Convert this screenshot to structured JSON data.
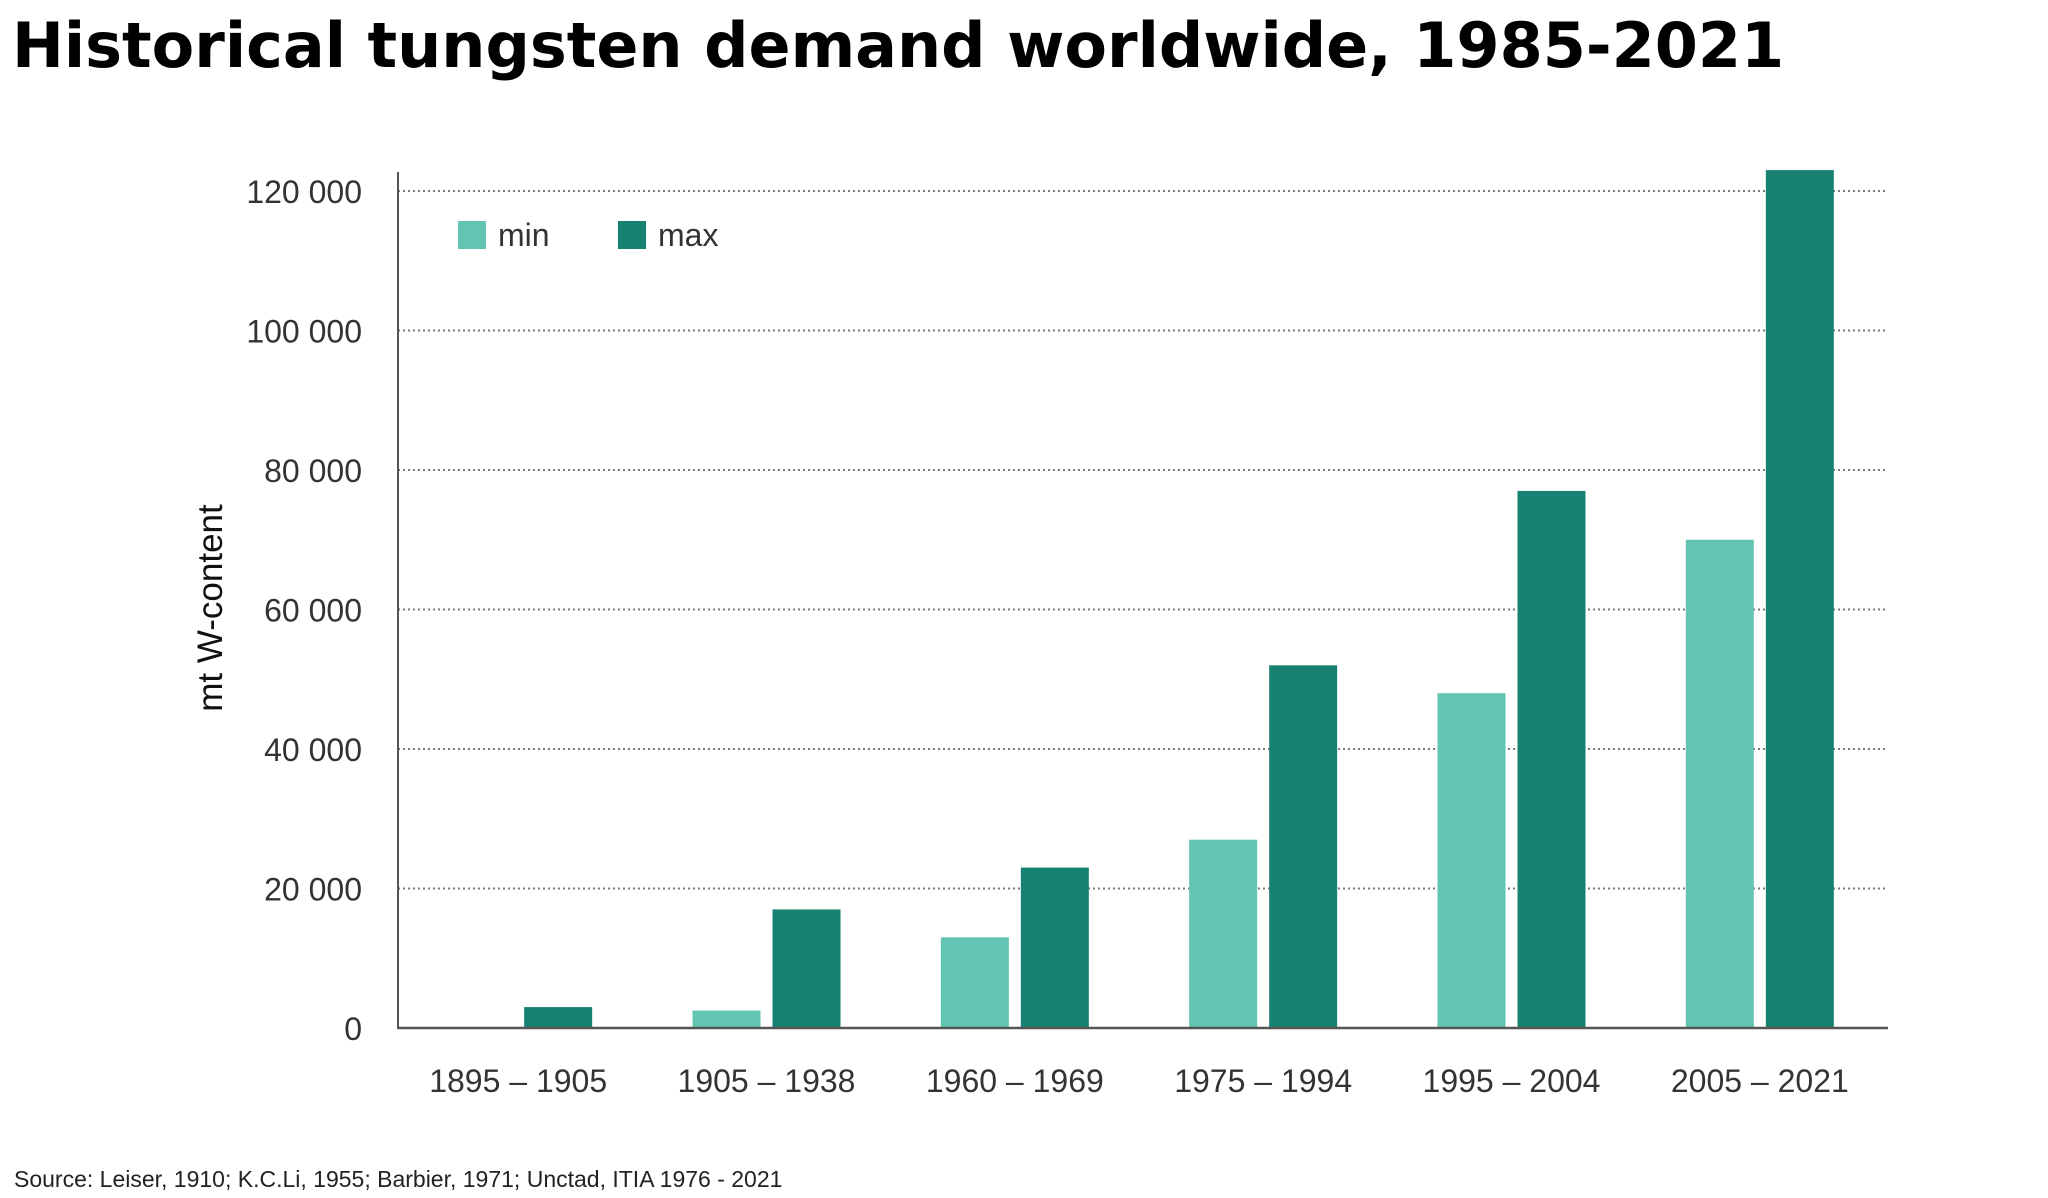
{
  "header": {
    "title": "Historical tungsten demand worldwide, 1985-2021"
  },
  "footer": {
    "source": "Source: Leiser, 1910; K.C.Li, 1955; Barbier, 1971; Unctad, ITIA 1976 - 2021"
  },
  "chart_data": {
    "type": "bar",
    "title": "",
    "xlabel": "",
    "ylabel": "mt W-content",
    "categories": [
      "1895 – 1905",
      "1905 – 1938",
      "1960 – 1969",
      "1975 – 1994",
      "1995 – 2004",
      "2005 – 2021"
    ],
    "series": [
      {
        "name": "min",
        "color": "#62c4b2",
        "values": [
          0,
          2500,
          13000,
          27000,
          48000,
          70000
        ]
      },
      {
        "name": "max",
        "color": "#178272",
        "values": [
          3000,
          17000,
          23000,
          52000,
          77000,
          123000
        ]
      }
    ],
    "ylim": [
      0,
      120000
    ],
    "yticks": [
      0,
      20000,
      40000,
      60000,
      80000,
      100000,
      120000
    ],
    "ytick_labels": [
      "0",
      "20 000",
      "40 000",
      "60 000",
      "80 000",
      "100 000",
      "120 000"
    ],
    "grid": true,
    "legend_position": "top-left"
  }
}
